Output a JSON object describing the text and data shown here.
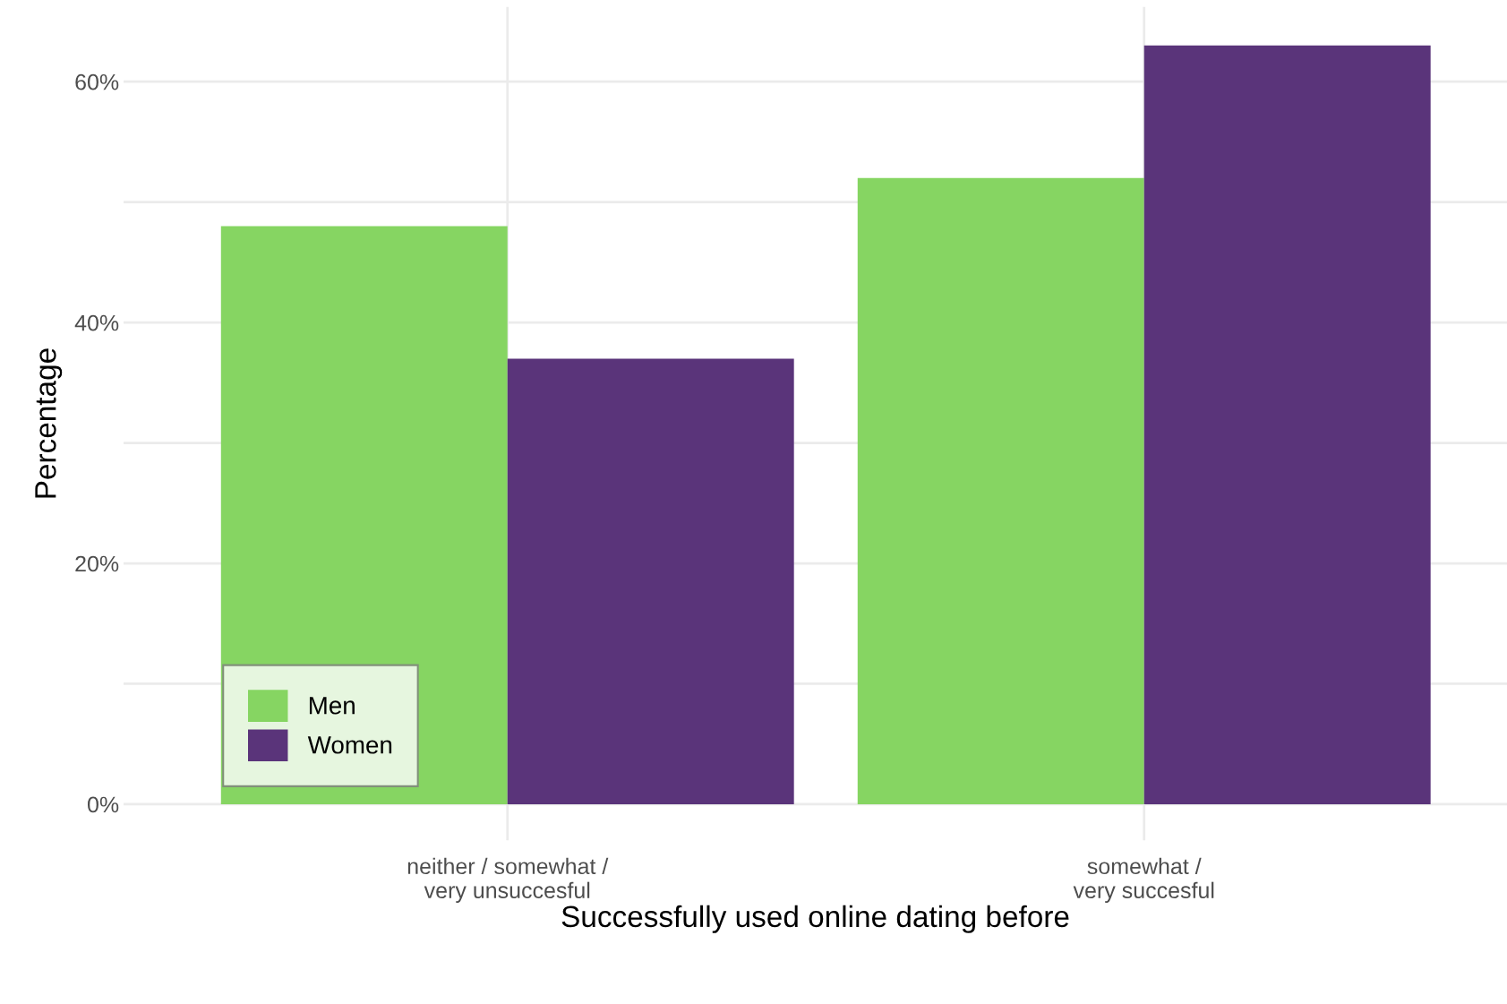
{
  "chart_data": {
    "type": "bar",
    "xlabel": "Successfully used online dating before",
    "ylabel": "Percentage",
    "categories": [
      "neither / somewhat /\nvery unsuccesful",
      "somewhat /\nvery succesful"
    ],
    "series": [
      {
        "name": "Men",
        "color": "#86d562",
        "values": [
          48,
          52
        ]
      },
      {
        "name": "Women",
        "color": "#5a347a",
        "values": [
          37,
          63
        ]
      }
    ],
    "ylim": [
      -3,
      66.2
    ],
    "yticks": [
      {
        "value": 0,
        "label": "0%"
      },
      {
        "value": 10,
        "label": null
      },
      {
        "value": 20,
        "label": "20%"
      },
      {
        "value": 30,
        "label": null
      },
      {
        "value": 40,
        "label": "40%"
      },
      {
        "value": 50,
        "label": null
      },
      {
        "value": 60,
        "label": "60%"
      }
    ],
    "grid": true,
    "legend": "lower left"
  }
}
